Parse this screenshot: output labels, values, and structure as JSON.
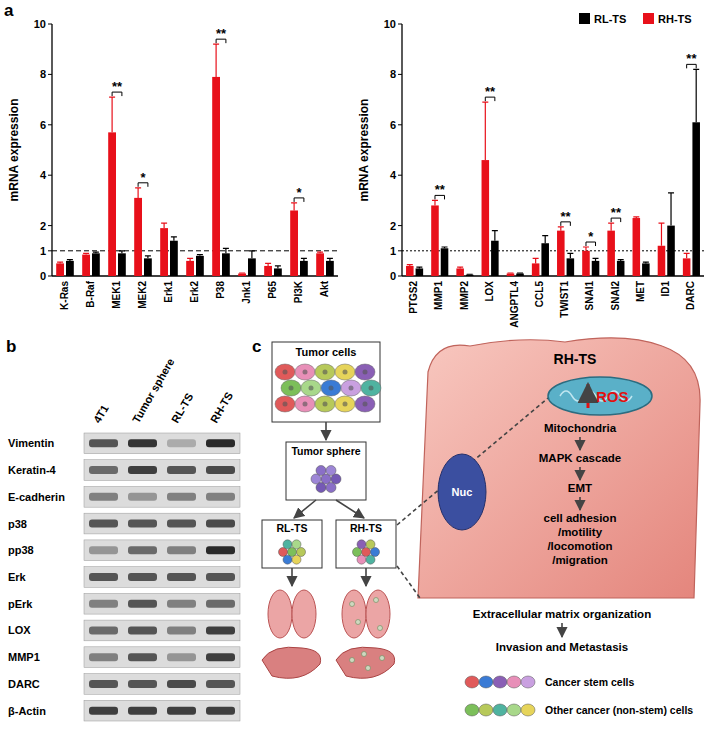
{
  "chart_data": [
    {
      "type": "bar",
      "y_label": "mRNA expression",
      "categories": [
        "K-Ras",
        "B-Raf",
        "MEK1",
        "MEK2",
        "Erk1",
        "Erk2",
        "P38",
        "Jnk1",
        "P65",
        "PI3K",
        "Akt"
      ],
      "series": [
        {
          "name": "RL-TS",
          "color": "#000000",
          "values": [
            0.6,
            0.9,
            0.9,
            0.7,
            1.4,
            0.8,
            0.9,
            0.7,
            0.3,
            0.6,
            0.6
          ],
          "errors": [
            0.05,
            0.05,
            0.1,
            0.1,
            0.15,
            0.05,
            0.2,
            0.3,
            0.1,
            0.1,
            0.1
          ]
        },
        {
          "name": "RH-TS",
          "color": "#e8101a",
          "values": [
            0.5,
            0.85,
            5.7,
            3.1,
            1.9,
            0.6,
            7.9,
            0.1,
            0.4,
            2.6,
            0.9
          ],
          "errors": [
            0.05,
            0.05,
            1.4,
            0.4,
            0.2,
            0.1,
            1.3,
            0.02,
            0.1,
            0.3,
            0.05
          ]
        }
      ],
      "significance": [
        null,
        null,
        "**",
        "*",
        null,
        null,
        "**",
        null,
        null,
        "*",
        null
      ],
      "ylim": [
        0,
        10
      ],
      "yticks": [
        0,
        1,
        2,
        4,
        6,
        8,
        10
      ],
      "reference_line": 1
    },
    {
      "type": "bar",
      "y_label": "mRNA expression",
      "categories": [
        "PTGS2",
        "MMP1",
        "MMP2",
        "LOX",
        "ANGPTL4",
        "CCL5",
        "TWIST1",
        "SNAI1",
        "SNAI2",
        "MET",
        "ID1",
        "DARC"
      ],
      "series": [
        {
          "name": "RL-TS",
          "color": "#000000",
          "values": [
            0.3,
            1.1,
            0.05,
            1.4,
            0.1,
            1.3,
            0.7,
            0.6,
            0.6,
            0.5,
            2.0,
            6.1
          ],
          "errors": [
            0.05,
            0.05,
            0.02,
            0.4,
            0.02,
            0.3,
            0.2,
            0.1,
            0.05,
            0.05,
            1.3,
            2.1
          ]
        },
        {
          "name": "RH-TS",
          "color": "#e8101a",
          "values": [
            0.4,
            2.8,
            0.3,
            4.6,
            0.1,
            0.5,
            1.8,
            1.0,
            1.8,
            2.3,
            1.2,
            0.7
          ],
          "errors": [
            0.05,
            0.2,
            0.05,
            2.3,
            0.02,
            0.2,
            0.15,
            0.15,
            0.3,
            0.05,
            0.9,
            0.2
          ]
        }
      ],
      "significance": [
        null,
        "**",
        null,
        "**",
        null,
        null,
        "**",
        "*",
        "**",
        null,
        null,
        "**"
      ],
      "ylim": [
        0,
        10
      ],
      "yticks": [
        0,
        1,
        2,
        4,
        6,
        8,
        10
      ],
      "reference_line": 1,
      "legend": "top-right"
    }
  ],
  "panel_labels": [
    "a",
    "b",
    "c"
  ],
  "blot": {
    "lanes": [
      "4T1",
      "Tumor sphere",
      "RL-TS",
      "RH-TS"
    ],
    "rows": [
      {
        "label": "Vimentin",
        "intensity": [
          0.7,
          0.85,
          0.3,
          0.9
        ]
      },
      {
        "label": "Keratin-4",
        "intensity": [
          0.6,
          0.8,
          0.7,
          0.75
        ]
      },
      {
        "label": "E-cadherin",
        "intensity": [
          0.5,
          0.4,
          0.5,
          0.5
        ]
      },
      {
        "label": "p38",
        "intensity": [
          0.7,
          0.7,
          0.7,
          0.75
        ]
      },
      {
        "label": "pp38",
        "intensity": [
          0.4,
          0.6,
          0.5,
          0.9
        ]
      },
      {
        "label": "Erk",
        "intensity": [
          0.7,
          0.7,
          0.7,
          0.7
        ]
      },
      {
        "label": "pErk",
        "intensity": [
          0.5,
          0.7,
          0.5,
          0.6
        ]
      },
      {
        "label": "LOX",
        "intensity": [
          0.6,
          0.7,
          0.5,
          0.8
        ]
      },
      {
        "label": "MMP1",
        "intensity": [
          0.5,
          0.7,
          0.4,
          0.8
        ]
      },
      {
        "label": "DARC",
        "intensity": [
          0.7,
          0.7,
          0.75,
          0.7
        ]
      },
      {
        "label": "β-Actin",
        "intensity": [
          0.8,
          0.8,
          0.8,
          0.8
        ]
      }
    ]
  },
  "diagram": {
    "flow": {
      "tumor_cells": "Tumor cells",
      "tumor_sphere": "Tumor sphere",
      "rl_ts": "RL-TS",
      "rh_ts": "RH-TS"
    },
    "cell": {
      "title": "RH-TS",
      "ros": "ROS",
      "steps": [
        "Mitochondria",
        "MAPK cascade",
        "EMT"
      ],
      "outcome": [
        "cell adhesion",
        "/motility",
        "/locomotion",
        "/migration"
      ],
      "nucleus": "Nuc"
    },
    "result": [
      "Extracellular matrix organization",
      "Invasion and Metastasis"
    ],
    "legend": [
      {
        "label": "Cancer stem cells",
        "colors": [
          "#e05a5a",
          "#3a7bd5",
          "#8a5fb5",
          "#e88fb8",
          "#c9a0e0"
        ]
      },
      {
        "label": "Other cancer (non-stem) cells",
        "colors": [
          "#7cbf5a",
          "#b7c95a",
          "#4fb3a0",
          "#a8d88a",
          "#e6d45a"
        ]
      }
    ]
  }
}
